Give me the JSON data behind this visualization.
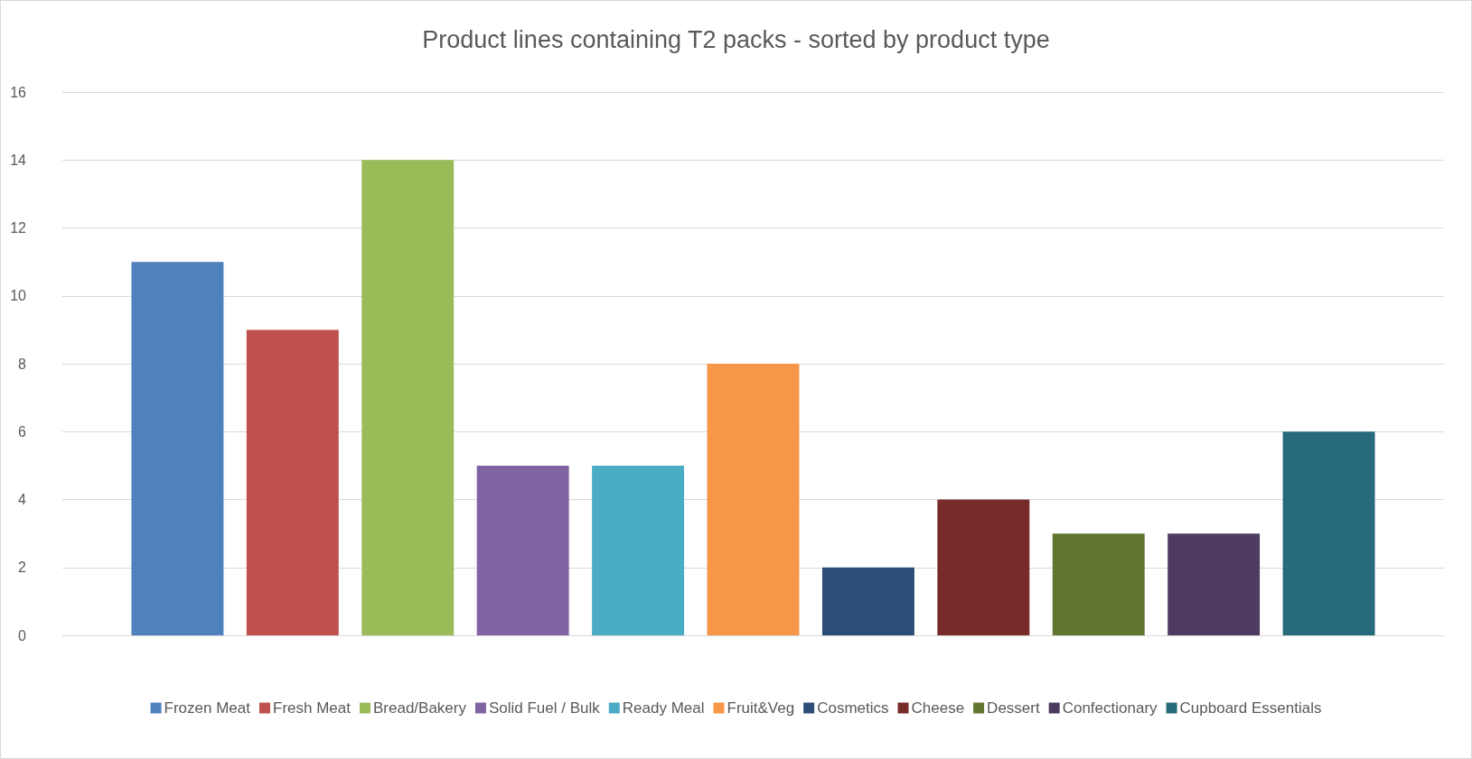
{
  "chart_data": {
    "type": "bar",
    "title": "Product lines containing T2 packs - sorted by product type",
    "categories": [
      null
    ],
    "series": [
      {
        "name": "Frozen Meat",
        "color": "#4f81bd",
        "values": [
          11
        ]
      },
      {
        "name": "Fresh Meat",
        "color": "#c0504d",
        "values": [
          9
        ]
      },
      {
        "name": "Bread/Bakery",
        "color": "#9bbb59",
        "values": [
          14
        ]
      },
      {
        "name": "Solid Fuel / Bulk",
        "color": "#8064a2",
        "values": [
          5
        ]
      },
      {
        "name": "Ready Meal",
        "color": "#4bacc6",
        "values": [
          5
        ]
      },
      {
        "name": "Fruit&Veg",
        "color": "#f79646",
        "values": [
          8
        ]
      },
      {
        "name": "Cosmetics",
        "color": "#2c4d75",
        "values": [
          2
        ]
      },
      {
        "name": "Cheese",
        "color": "#772c2a",
        "values": [
          4
        ]
      },
      {
        "name": "Dessert",
        "color": "#5f7530",
        "values": [
          3
        ]
      },
      {
        "name": "Confectionary",
        "color": "#4d3b62",
        "values": [
          3
        ]
      },
      {
        "name": "Cupboard Essentials",
        "color": "#276a7c",
        "values": [
          6
        ]
      }
    ],
    "ylim": [
      0,
      16
    ],
    "yticks": [
      0,
      2,
      4,
      6,
      8,
      10,
      12,
      14,
      16
    ],
    "grid": "y",
    "legend": "bottom"
  }
}
